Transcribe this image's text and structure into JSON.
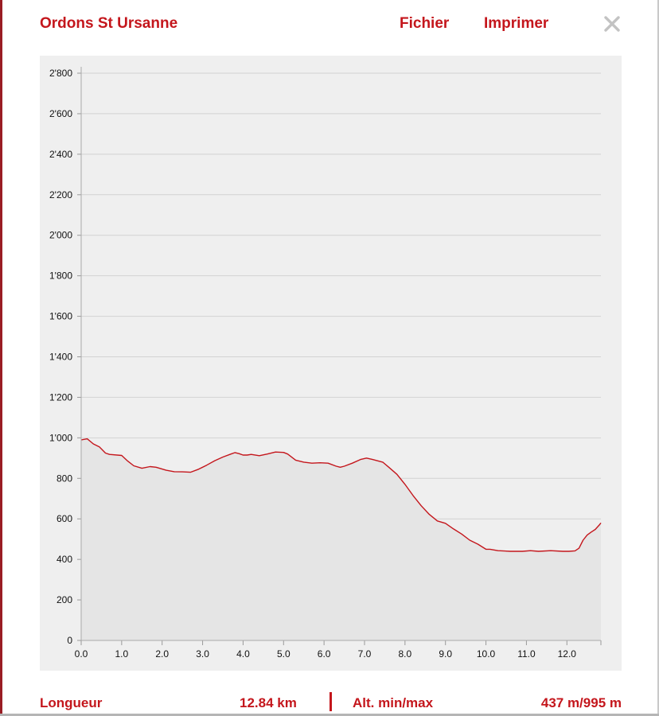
{
  "header": {
    "title": "Ordons St Ursanne",
    "menu_file": "Fichier",
    "menu_print": "Imprimer",
    "close_icon": "close-icon"
  },
  "colors": {
    "accent": "#c4161c",
    "profile_line": "#c4161c",
    "profile_fill": "#e5e5e5",
    "panel_bg": "#efefef",
    "grid": "#d2d2d2"
  },
  "chart_data": {
    "type": "area",
    "title": "",
    "xlabel": "",
    "ylabel": "",
    "xlim": [
      0,
      12.84
    ],
    "ylim": [
      0,
      2800
    ],
    "grid": true,
    "x_ticks": [
      "0.0",
      "1.0",
      "2.0",
      "3.0",
      "4.0",
      "5.0",
      "6.0",
      "7.0",
      "8.0",
      "9.0",
      "10.0",
      "11.0",
      "12.0"
    ],
    "y_ticks": [
      "0",
      "200",
      "400",
      "600",
      "800",
      "1'000",
      "1'200",
      "1'400",
      "1'600",
      "1'800",
      "2'000",
      "2'200",
      "2'400",
      "2'600",
      "2'800"
    ],
    "x": [
      0,
      0.15,
      0.3,
      0.45,
      0.6,
      0.7,
      1.0,
      1.15,
      1.3,
      1.5,
      1.7,
      1.85,
      2.1,
      2.3,
      2.5,
      2.7,
      2.9,
      3.1,
      3.3,
      3.5,
      3.7,
      3.8,
      3.9,
      4.0,
      4.1,
      4.2,
      4.4,
      4.6,
      4.8,
      5.0,
      5.1,
      5.3,
      5.5,
      5.7,
      5.9,
      6.1,
      6.3,
      6.4,
      6.5,
      6.7,
      6.9,
      7.05,
      7.2,
      7.45,
      7.6,
      7.8,
      8.0,
      8.2,
      8.4,
      8.6,
      8.8,
      9.0,
      9.2,
      9.4,
      9.6,
      9.8,
      10.0,
      10.1,
      10.3,
      10.6,
      10.9,
      11.1,
      11.3,
      11.6,
      11.9,
      12.05,
      12.2,
      12.3,
      12.4,
      12.5,
      12.6,
      12.7,
      12.8,
      12.84
    ],
    "elevation": [
      990,
      995,
      970,
      955,
      925,
      918,
      913,
      885,
      862,
      850,
      858,
      855,
      840,
      833,
      832,
      830,
      845,
      865,
      887,
      905,
      920,
      927,
      922,
      915,
      915,
      918,
      912,
      920,
      930,
      928,
      920,
      890,
      880,
      875,
      877,
      875,
      860,
      855,
      860,
      875,
      893,
      900,
      893,
      880,
      855,
      820,
      770,
      715,
      665,
      622,
      590,
      578,
      550,
      525,
      495,
      475,
      450,
      450,
      443,
      440,
      440,
      443,
      440,
      443,
      440,
      440,
      442,
      455,
      495,
      520,
      535,
      548,
      570,
      580
    ]
  },
  "footer": {
    "length_label": "Longueur",
    "length_value": "12.84 km",
    "alt_label": "Alt. min/max",
    "alt_value": "437 m/995 m"
  }
}
